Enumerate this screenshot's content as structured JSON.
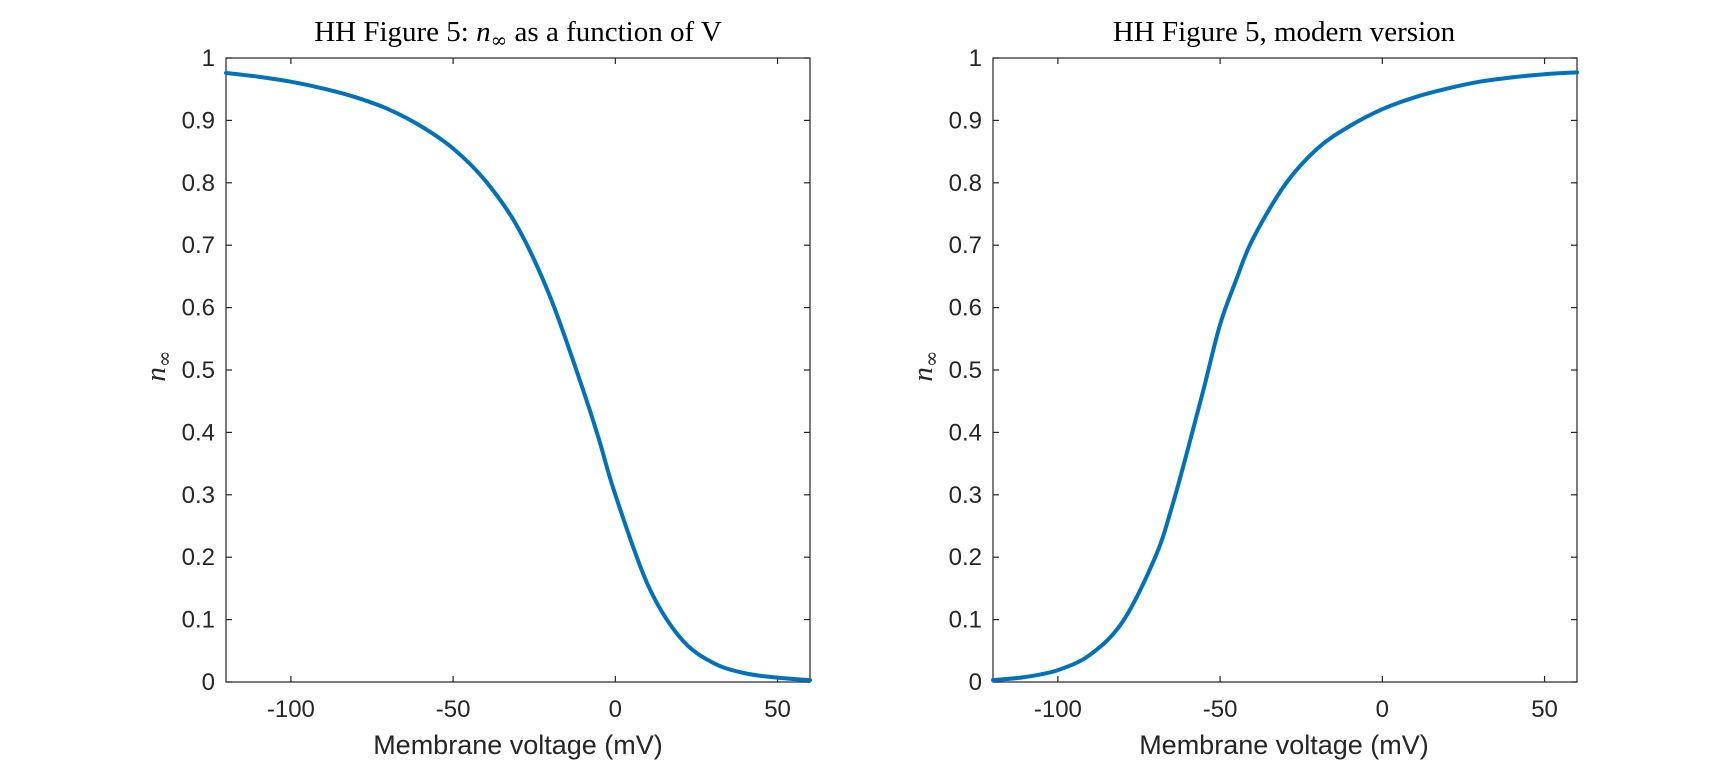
{
  "chart_data": [
    {
      "type": "line",
      "title": "HH Figure 5: n∞ as a function of V",
      "title_parts": {
        "before": "HH Figure 5: ",
        "symbol": "n",
        "subscript": "∞",
        "after": " as a function of V"
      },
      "xlabel": "Membrane voltage (mV)",
      "ylabel": {
        "symbol": "n",
        "subscript": "∞"
      },
      "xlim": [
        -120,
        60
      ],
      "ylim": [
        0,
        1
      ],
      "xticks": [
        "-100",
        "-50",
        "0",
        "50"
      ],
      "xtick_values": [
        -100,
        -50,
        0,
        50
      ],
      "yticks": [
        "0",
        "0.1",
        "0.2",
        "0.3",
        "0.4",
        "0.5",
        "0.6",
        "0.7",
        "0.8",
        "0.9",
        "1"
      ],
      "ytick_values": [
        0,
        0.1,
        0.2,
        0.3,
        0.4,
        0.5,
        0.6,
        0.7,
        0.8,
        0.9,
        1
      ],
      "grid": false,
      "series": [
        {
          "color": "#0072BD",
          "x": [
            -120,
            -110,
            -100,
            -90,
            -80,
            -70,
            -60,
            -50,
            -40,
            -30,
            -20,
            -10,
            -5,
            0,
            10,
            20,
            30,
            40,
            50,
            60
          ],
          "y": [
            0.976,
            0.97,
            0.962,
            0.951,
            0.937,
            0.918,
            0.891,
            0.855,
            0.803,
            0.728,
            0.616,
            0.469,
            0.388,
            0.3,
            0.156,
            0.071,
            0.031,
            0.014,
            0.007,
            0.003
          ]
        }
      ]
    },
    {
      "type": "line",
      "title": "HH Figure 5, modern version",
      "title_parts": {
        "before": "HH Figure 5, modern version",
        "symbol": "",
        "subscript": "",
        "after": ""
      },
      "xlabel": "Membrane voltage (mV)",
      "ylabel": {
        "symbol": "n",
        "subscript": "∞"
      },
      "xlim": [
        -120,
        60
      ],
      "ylim": [
        0,
        1
      ],
      "xticks": [
        "-100",
        "-50",
        "0",
        "50"
      ],
      "xtick_values": [
        -100,
        -50,
        0,
        50
      ],
      "yticks": [
        "0",
        "0.1",
        "0.2",
        "0.3",
        "0.4",
        "0.5",
        "0.6",
        "0.7",
        "0.8",
        "0.9",
        "1"
      ],
      "ytick_values": [
        0,
        0.1,
        0.2,
        0.3,
        0.4,
        0.5,
        0.6,
        0.7,
        0.8,
        0.9,
        1
      ],
      "grid": false,
      "series": [
        {
          "color": "#0072BD",
          "x": [
            -120,
            -110,
            -100,
            -90,
            -80,
            -70,
            -65,
            -60,
            -55,
            -50,
            -45,
            -40,
            -30,
            -20,
            -10,
            0,
            10,
            20,
            30,
            40,
            50,
            60
          ],
          "y": [
            0.003,
            0.008,
            0.019,
            0.044,
            0.097,
            0.2,
            0.278,
            0.372,
            0.471,
            0.573,
            0.645,
            0.709,
            0.797,
            0.855,
            0.891,
            0.918,
            0.937,
            0.951,
            0.962,
            0.969,
            0.974,
            0.977
          ]
        }
      ]
    }
  ]
}
